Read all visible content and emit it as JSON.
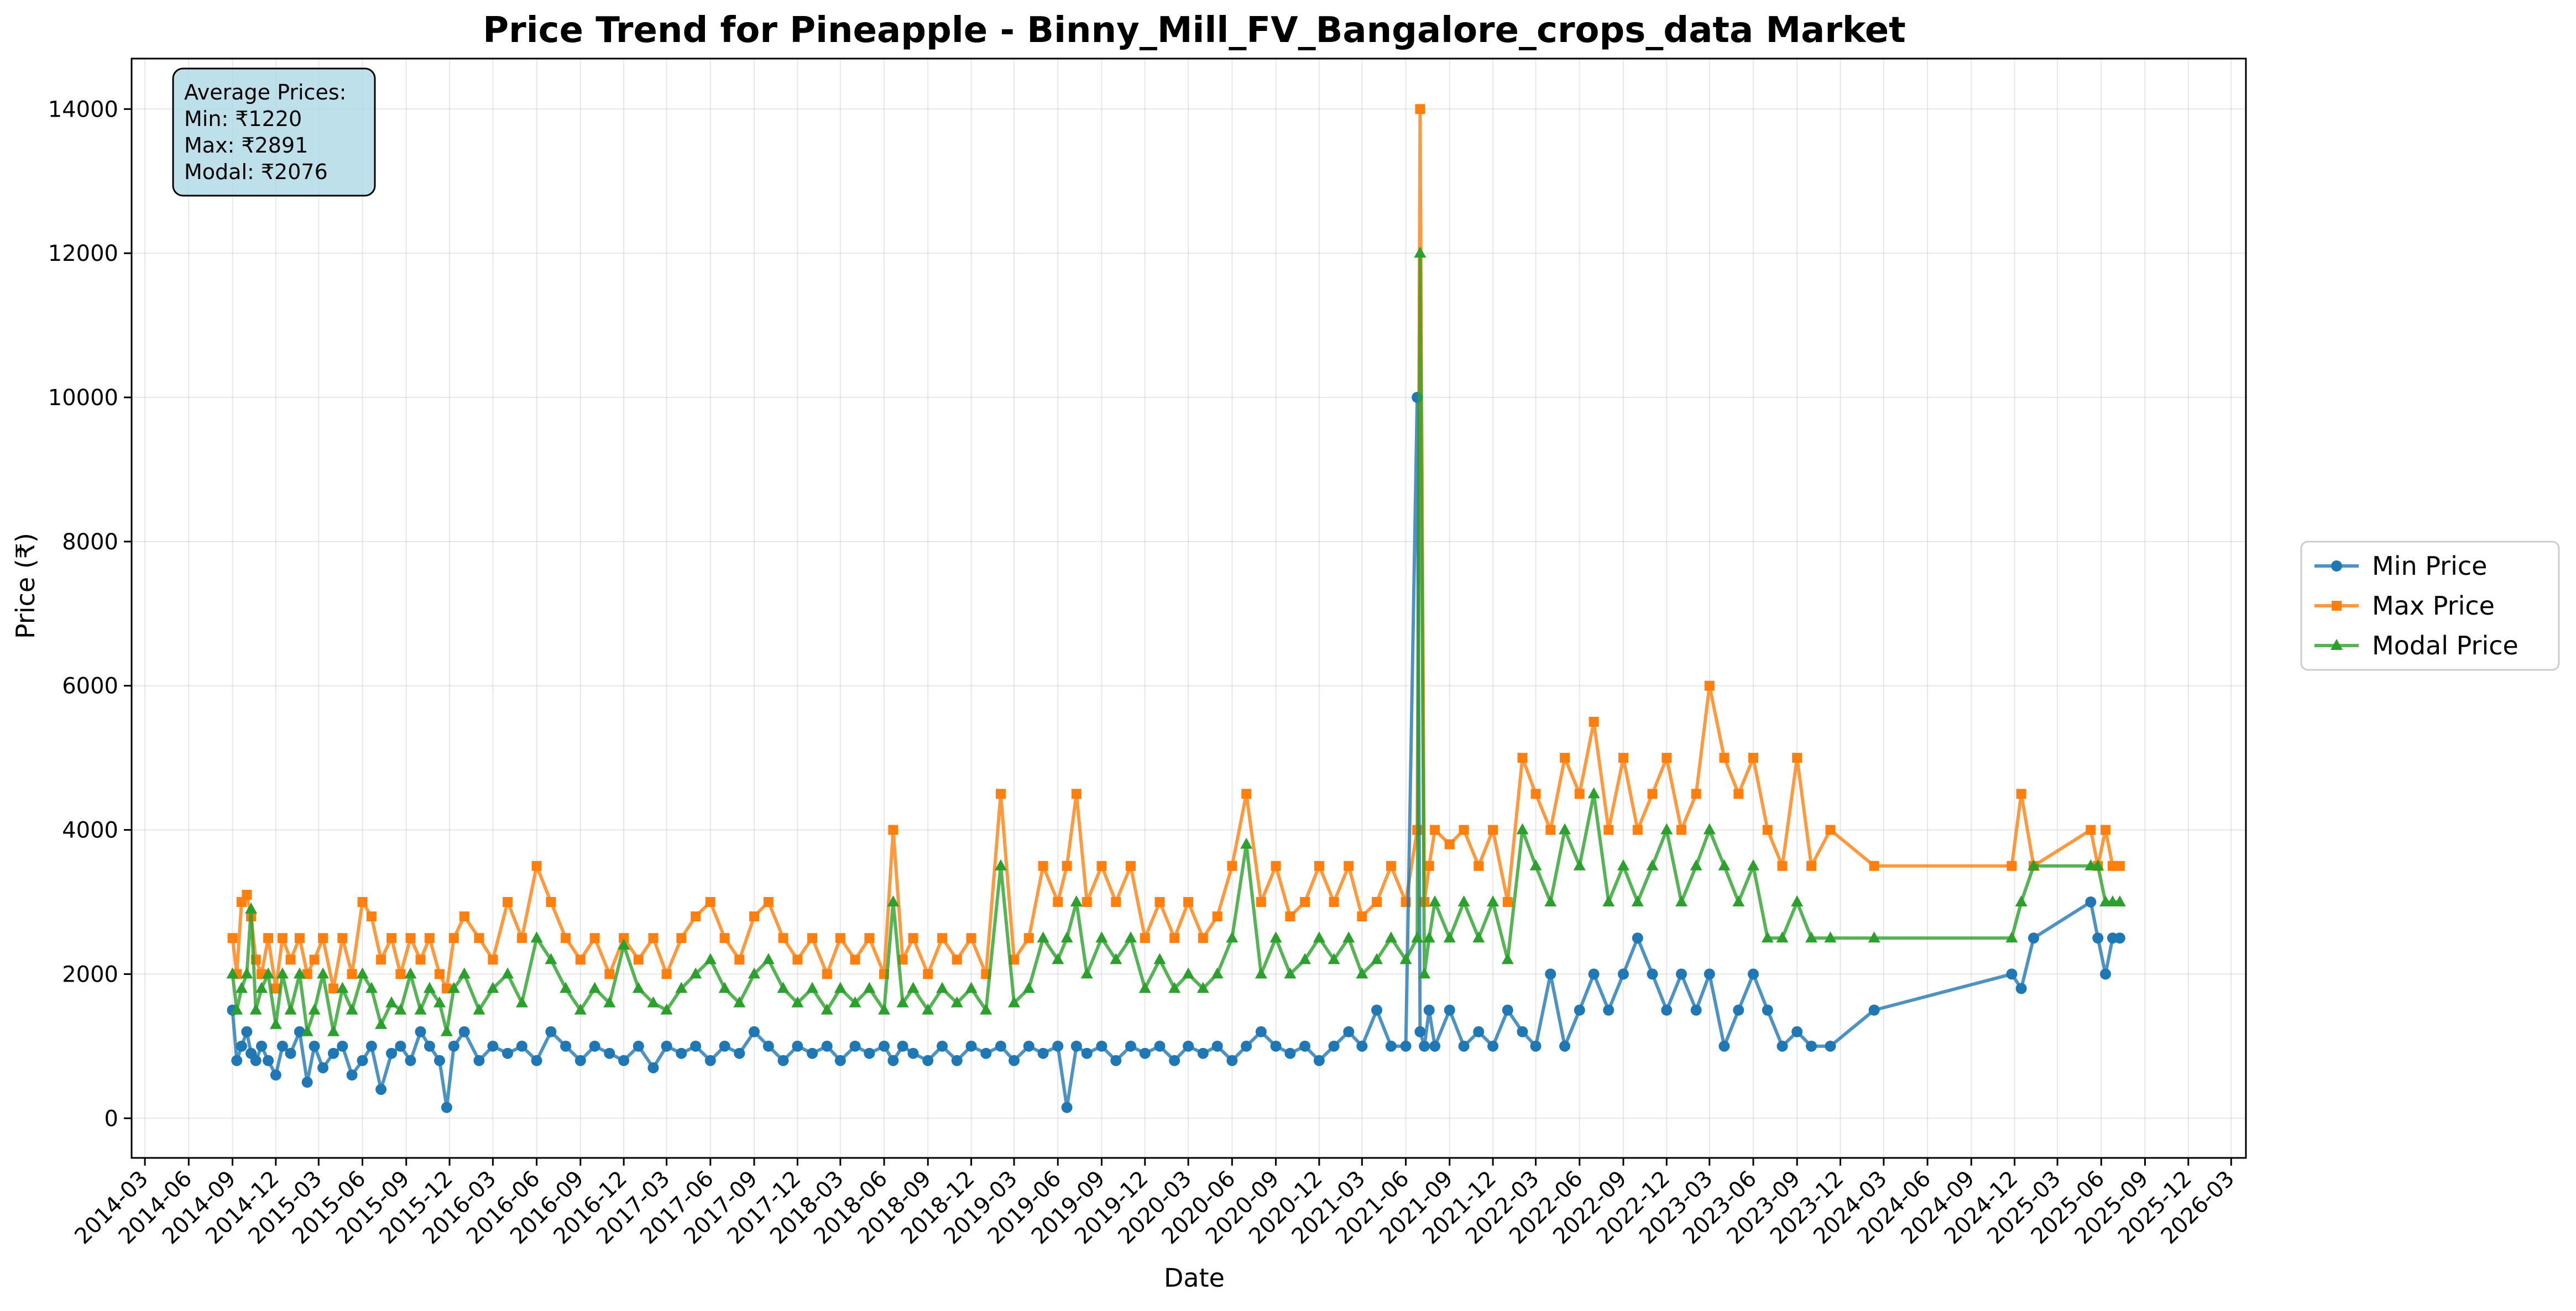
{
  "chart_data": {
    "type": "line",
    "title": "Price Trend for Pineapple - Binny_Mill_FV_Bangalore_crops_data Market",
    "xlabel": "Date",
    "ylabel": "Price (₹)",
    "xlim": [
      "2014-02-01",
      "2026-04-01"
    ],
    "ylim": [
      -550,
      14700
    ],
    "yticks": [
      0,
      2000,
      4000,
      6000,
      8000,
      10000,
      12000,
      14000
    ],
    "xticks": [
      "2014-03",
      "2014-06",
      "2014-09",
      "2014-12",
      "2015-03",
      "2015-06",
      "2015-09",
      "2015-12",
      "2016-03",
      "2016-06",
      "2016-09",
      "2016-12",
      "2017-03",
      "2017-06",
      "2017-09",
      "2017-12",
      "2018-03",
      "2018-06",
      "2018-09",
      "2018-12",
      "2019-03",
      "2019-06",
      "2019-09",
      "2019-12",
      "2020-03",
      "2020-06",
      "2020-09",
      "2020-12",
      "2021-03",
      "2021-06",
      "2021-09",
      "2021-12",
      "2022-03",
      "2022-06",
      "2022-09",
      "2022-12",
      "2023-03",
      "2023-06",
      "2023-09",
      "2023-12",
      "2024-03",
      "2024-06",
      "2024-09",
      "2024-12",
      "2025-03",
      "2025-06",
      "2025-09",
      "2025-12",
      "2026-03"
    ],
    "grid": true,
    "legend_position": "right, outside plot",
    "stats_box": {
      "heading": "Average Prices:",
      "lines": [
        "Min: ₹1220",
        "Max: ₹2891",
        "Modal: ₹2076"
      ]
    },
    "series": [
      {
        "name": "Min Price",
        "color": "#1f77b4",
        "marker": "circle",
        "x": [
          "2014-09-01",
          "2014-09-10",
          "2014-09-20",
          "2014-10-01",
          "2014-10-10",
          "2014-10-20",
          "2014-11-01",
          "2014-11-15",
          "2014-12-01",
          "2014-12-15",
          "2015-01-01",
          "2015-01-20",
          "2015-02-05",
          "2015-02-20",
          "2015-03-10",
          "2015-04-01",
          "2015-04-20",
          "2015-05-10",
          "2015-06-01",
          "2015-06-20",
          "2015-07-10",
          "2015-08-01",
          "2015-08-20",
          "2015-09-10",
          "2015-10-01",
          "2015-10-20",
          "2015-11-10",
          "2015-11-25",
          "2015-12-10",
          "2016-01-01",
          "2016-02-01",
          "2016-03-01",
          "2016-04-01",
          "2016-05-01",
          "2016-06-01",
          "2016-07-01",
          "2016-08-01",
          "2016-09-01",
          "2016-10-01",
          "2016-11-01",
          "2016-12-01",
          "2017-01-01",
          "2017-02-01",
          "2017-03-01",
          "2017-04-01",
          "2017-05-01",
          "2017-06-01",
          "2017-07-01",
          "2017-08-01",
          "2017-09-01",
          "2017-10-01",
          "2017-11-01",
          "2017-12-01",
          "2018-01-01",
          "2018-02-01",
          "2018-03-01",
          "2018-04-01",
          "2018-05-01",
          "2018-06-01",
          "2018-06-20",
          "2018-07-10",
          "2018-08-01",
          "2018-09-01",
          "2018-10-01",
          "2018-11-01",
          "2018-12-01",
          "2019-01-01",
          "2019-02-01",
          "2019-03-01",
          "2019-04-01",
          "2019-05-01",
          "2019-06-01",
          "2019-06-20",
          "2019-07-10",
          "2019-08-01",
          "2019-09-01",
          "2019-10-01",
          "2019-11-01",
          "2019-12-01",
          "2020-01-01",
          "2020-02-01",
          "2020-03-01",
          "2020-04-01",
          "2020-05-01",
          "2020-06-01",
          "2020-07-01",
          "2020-08-01",
          "2020-09-01",
          "2020-10-01",
          "2020-11-01",
          "2020-12-01",
          "2021-01-01",
          "2021-02-01",
          "2021-03-01",
          "2021-04-01",
          "2021-05-01",
          "2021-06-01",
          "2021-06-25",
          "2021-07-01",
          "2021-07-10",
          "2021-07-20",
          "2021-08-01",
          "2021-09-01",
          "2021-10-01",
          "2021-11-01",
          "2021-12-01",
          "2022-01-01",
          "2022-02-01",
          "2022-03-01",
          "2022-04-01",
          "2022-05-01",
          "2022-06-01",
          "2022-07-01",
          "2022-08-01",
          "2022-09-01",
          "2022-10-01",
          "2022-11-01",
          "2022-12-01",
          "2023-01-01",
          "2023-02-01",
          "2023-03-01",
          "2023-04-01",
          "2023-05-01",
          "2023-06-01",
          "2023-07-01",
          "2023-08-01",
          "2023-09-01",
          "2023-10-01",
          "2023-11-10",
          "2024-02-10",
          "2024-11-25",
          "2024-12-15",
          "2025-01-10",
          "2025-05-10",
          "2025-05-25",
          "2025-06-10",
          "2025-06-25",
          "2025-07-10"
        ],
        "values": [
          1500,
          800,
          1000,
          1200,
          900,
          800,
          1000,
          800,
          600,
          1000,
          900,
          1200,
          500,
          1000,
          700,
          900,
          1000,
          600,
          800,
          1000,
          400,
          900,
          1000,
          800,
          1200,
          1000,
          800,
          150,
          1000,
          1200,
          800,
          1000,
          900,
          1000,
          800,
          1200,
          1000,
          800,
          1000,
          900,
          800,
          1000,
          700,
          1000,
          900,
          1000,
          800,
          1000,
          900,
          1200,
          1000,
          800,
          1000,
          900,
          1000,
          800,
          1000,
          900,
          1000,
          800,
          1000,
          900,
          800,
          1000,
          800,
          1000,
          900,
          1000,
          800,
          1000,
          900,
          1000,
          150,
          1000,
          900,
          1000,
          800,
          1000,
          900,
          1000,
          800,
          1000,
          900,
          1000,
          800,
          1000,
          1200,
          1000,
          900,
          1000,
          800,
          1000,
          1200,
          1000,
          1500,
          1000,
          1000,
          10000,
          1200,
          1000,
          1500,
          1000,
          1500,
          1000,
          1200,
          1000,
          1500,
          1200,
          1000,
          2000,
          1000,
          1500,
          2000,
          1500,
          2000,
          2500,
          2000,
          1500,
          2000,
          1500,
          2000,
          1000,
          1500,
          2000,
          1500,
          1000,
          1200,
          1000,
          1000,
          1500,
          2000,
          1800,
          2500,
          3000,
          2500,
          2000,
          2500,
          2500
        ]
      },
      {
        "name": "Max Price",
        "color": "#ff7f0e",
        "marker": "square",
        "x": [
          "2014-09-01",
          "2014-09-10",
          "2014-09-20",
          "2014-10-01",
          "2014-10-10",
          "2014-10-20",
          "2014-11-01",
          "2014-11-15",
          "2014-12-01",
          "2014-12-15",
          "2015-01-01",
          "2015-01-20",
          "2015-02-05",
          "2015-02-20",
          "2015-03-10",
          "2015-04-01",
          "2015-04-20",
          "2015-05-10",
          "2015-06-01",
          "2015-06-20",
          "2015-07-10",
          "2015-08-01",
          "2015-08-20",
          "2015-09-10",
          "2015-10-01",
          "2015-10-20",
          "2015-11-10",
          "2015-11-25",
          "2015-12-10",
          "2016-01-01",
          "2016-02-01",
          "2016-03-01",
          "2016-04-01",
          "2016-05-01",
          "2016-06-01",
          "2016-07-01",
          "2016-08-01",
          "2016-09-01",
          "2016-10-01",
          "2016-11-01",
          "2016-12-01",
          "2017-01-01",
          "2017-02-01",
          "2017-03-01",
          "2017-04-01",
          "2017-05-01",
          "2017-06-01",
          "2017-07-01",
          "2017-08-01",
          "2017-09-01",
          "2017-10-01",
          "2017-11-01",
          "2017-12-01",
          "2018-01-01",
          "2018-02-01",
          "2018-03-01",
          "2018-04-01",
          "2018-05-01",
          "2018-06-01",
          "2018-06-20",
          "2018-07-10",
          "2018-08-01",
          "2018-09-01",
          "2018-10-01",
          "2018-11-01",
          "2018-12-01",
          "2019-01-01",
          "2019-02-01",
          "2019-03-01",
          "2019-04-01",
          "2019-05-01",
          "2019-06-01",
          "2019-06-20",
          "2019-07-10",
          "2019-08-01",
          "2019-09-01",
          "2019-10-01",
          "2019-11-01",
          "2019-12-01",
          "2020-01-01",
          "2020-02-01",
          "2020-03-01",
          "2020-04-01",
          "2020-05-01",
          "2020-06-01",
          "2020-07-01",
          "2020-08-01",
          "2020-09-01",
          "2020-10-01",
          "2020-11-01",
          "2020-12-01",
          "2021-01-01",
          "2021-02-01",
          "2021-03-01",
          "2021-04-01",
          "2021-05-01",
          "2021-06-01",
          "2021-06-25",
          "2021-07-01",
          "2021-07-10",
          "2021-07-20",
          "2021-08-01",
          "2021-09-01",
          "2021-10-01",
          "2021-11-01",
          "2021-12-01",
          "2022-01-01",
          "2022-02-01",
          "2022-03-01",
          "2022-04-01",
          "2022-05-01",
          "2022-06-01",
          "2022-07-01",
          "2022-08-01",
          "2022-09-01",
          "2022-10-01",
          "2022-11-01",
          "2022-12-01",
          "2023-01-01",
          "2023-02-01",
          "2023-03-01",
          "2023-04-01",
          "2023-05-01",
          "2023-06-01",
          "2023-07-01",
          "2023-08-01",
          "2023-09-01",
          "2023-10-01",
          "2023-11-10",
          "2024-02-10",
          "2024-11-25",
          "2024-12-15",
          "2025-01-10",
          "2025-05-10",
          "2025-05-25",
          "2025-06-10",
          "2025-06-25",
          "2025-07-10"
        ],
        "values": [
          2500,
          2000,
          3000,
          3100,
          2800,
          2200,
          2000,
          2500,
          1800,
          2500,
          2200,
          2500,
          2000,
          2200,
          2500,
          1800,
          2500,
          2000,
          3000,
          2800,
          2200,
          2500,
          2000,
          2500,
          2200,
          2500,
          2000,
          1800,
          2500,
          2800,
          2500,
          2200,
          3000,
          2500,
          3500,
          3000,
          2500,
          2200,
          2500,
          2000,
          2500,
          2200,
          2500,
          2000,
          2500,
          2800,
          3000,
          2500,
          2200,
          2800,
          3000,
          2500,
          2200,
          2500,
          2000,
          2500,
          2200,
          2500,
          2000,
          4000,
          2200,
          2500,
          2000,
          2500,
          2200,
          2500,
          2000,
          4500,
          2200,
          2500,
          3500,
          3000,
          3500,
          4500,
          3000,
          3500,
          3000,
          3500,
          2500,
          3000,
          2500,
          3000,
          2500,
          2800,
          3500,
          4500,
          3000,
          3500,
          2800,
          3000,
          3500,
          3000,
          3500,
          2800,
          3000,
          3500,
          3000,
          4000,
          14000,
          3000,
          3500,
          4000,
          3800,
          4000,
          3500,
          4000,
          3000,
          5000,
          4500,
          4000,
          5000,
          4500,
          5500,
          4000,
          5000,
          4000,
          4500,
          5000,
          4000,
          4500,
          6000,
          5000,
          4500,
          5000,
          4000,
          3500,
          5000,
          3500,
          4000,
          3500,
          3500,
          4500,
          3500,
          4000,
          3500,
          4000,
          3500,
          3500
        ]
      },
      {
        "name": "Modal Price",
        "color": "#2ca02c",
        "marker": "triangle",
        "x": [
          "2014-09-01",
          "2014-09-10",
          "2014-09-20",
          "2014-10-01",
          "2014-10-10",
          "2014-10-20",
          "2014-11-01",
          "2014-11-15",
          "2014-12-01",
          "2014-12-15",
          "2015-01-01",
          "2015-01-20",
          "2015-02-05",
          "2015-02-20",
          "2015-03-10",
          "2015-04-01",
          "2015-04-20",
          "2015-05-10",
          "2015-06-01",
          "2015-06-20",
          "2015-07-10",
          "2015-08-01",
          "2015-08-20",
          "2015-09-10",
          "2015-10-01",
          "2015-10-20",
          "2015-11-10",
          "2015-11-25",
          "2015-12-10",
          "2016-01-01",
          "2016-02-01",
          "2016-03-01",
          "2016-04-01",
          "2016-05-01",
          "2016-06-01",
          "2016-07-01",
          "2016-08-01",
          "2016-09-01",
          "2016-10-01",
          "2016-11-01",
          "2016-12-01",
          "2017-01-01",
          "2017-02-01",
          "2017-03-01",
          "2017-04-01",
          "2017-05-01",
          "2017-06-01",
          "2017-07-01",
          "2017-08-01",
          "2017-09-01",
          "2017-10-01",
          "2017-11-01",
          "2017-12-01",
          "2018-01-01",
          "2018-02-01",
          "2018-03-01",
          "2018-04-01",
          "2018-05-01",
          "2018-06-01",
          "2018-06-20",
          "2018-07-10",
          "2018-08-01",
          "2018-09-01",
          "2018-10-01",
          "2018-11-01",
          "2018-12-01",
          "2019-01-01",
          "2019-02-01",
          "2019-03-01",
          "2019-04-01",
          "2019-05-01",
          "2019-06-01",
          "2019-06-20",
          "2019-07-10",
          "2019-08-01",
          "2019-09-01",
          "2019-10-01",
          "2019-11-01",
          "2019-12-01",
          "2020-01-01",
          "2020-02-01",
          "2020-03-01",
          "2020-04-01",
          "2020-05-01",
          "2020-06-01",
          "2020-07-01",
          "2020-08-01",
          "2020-09-01",
          "2020-10-01",
          "2020-11-01",
          "2020-12-01",
          "2021-01-01",
          "2021-02-01",
          "2021-03-01",
          "2021-04-01",
          "2021-05-01",
          "2021-06-01",
          "2021-06-25",
          "2021-07-01",
          "2021-07-10",
          "2021-07-20",
          "2021-08-01",
          "2021-09-01",
          "2021-10-01",
          "2021-11-01",
          "2021-12-01",
          "2022-01-01",
          "2022-02-01",
          "2022-03-01",
          "2022-04-01",
          "2022-05-01",
          "2022-06-01",
          "2022-07-01",
          "2022-08-01",
          "2022-09-01",
          "2022-10-01",
          "2022-11-01",
          "2022-12-01",
          "2023-01-01",
          "2023-02-01",
          "2023-03-01",
          "2023-04-01",
          "2023-05-01",
          "2023-06-01",
          "2023-07-01",
          "2023-08-01",
          "2023-09-01",
          "2023-10-01",
          "2023-11-10",
          "2024-02-10",
          "2024-11-25",
          "2024-12-15",
          "2025-01-10",
          "2025-05-10",
          "2025-05-25",
          "2025-06-10",
          "2025-06-25",
          "2025-07-10"
        ],
        "values": [
          2000,
          1500,
          1800,
          2000,
          2900,
          1500,
          1800,
          2000,
          1300,
          2000,
          1500,
          2000,
          1200,
          1500,
          2000,
          1200,
          1800,
          1500,
          2000,
          1800,
          1300,
          1600,
          1500,
          2000,
          1500,
          1800,
          1600,
          1200,
          1800,
          2000,
          1500,
          1800,
          2000,
          1600,
          2500,
          2200,
          1800,
          1500,
          1800,
          1600,
          2400,
          1800,
          1600,
          1500,
          1800,
          2000,
          2200,
          1800,
          1600,
          2000,
          2200,
          1800,
          1600,
          1800,
          1500,
          1800,
          1600,
          1800,
          1500,
          3000,
          1600,
          1800,
          1500,
          1800,
          1600,
          1800,
          1500,
          3500,
          1600,
          1800,
          2500,
          2200,
          2500,
          3000,
          2000,
          2500,
          2200,
          2500,
          1800,
          2200,
          1800,
          2000,
          1800,
          2000,
          2500,
          3800,
          2000,
          2500,
          2000,
          2200,
          2500,
          2200,
          2500,
          2000,
          2200,
          2500,
          2200,
          2500,
          12000,
          2000,
          2500,
          3000,
          2500,
          3000,
          2500,
          3000,
          2200,
          4000,
          3500,
          3000,
          4000,
          3500,
          4500,
          3000,
          3500,
          3000,
          3500,
          4000,
          3000,
          3500,
          4000,
          3500,
          3000,
          3500,
          2500,
          2500,
          3000,
          2500,
          2500,
          2500,
          2500,
          3000,
          3500,
          3500,
          3500,
          3000,
          3000,
          3000
        ]
      }
    ]
  }
}
